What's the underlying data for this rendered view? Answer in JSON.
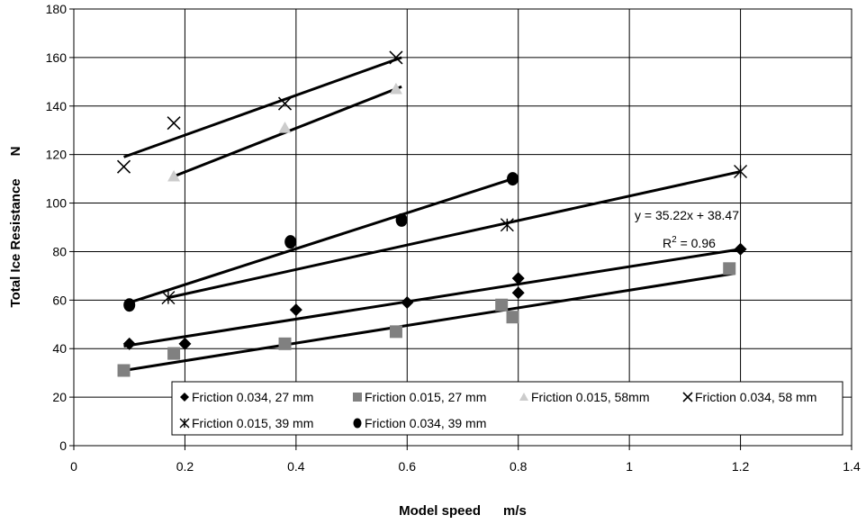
{
  "chart_data": {
    "type": "scatter",
    "xlabel": "Model speed      m/s",
    "ylabel": "Total Ice Resistance      N",
    "xlim": [
      0,
      1.4
    ],
    "ylim": [
      0,
      180
    ],
    "xticks": [
      0,
      0.2,
      0.4,
      0.6,
      0.8,
      1,
      1.2,
      1.4
    ],
    "yticks": [
      0,
      20,
      40,
      60,
      80,
      100,
      120,
      140,
      160,
      180
    ],
    "xtick_labels": [
      "0",
      "0.2",
      "0.4",
      "0.6",
      "0.8",
      "1",
      "1.2",
      "1.4"
    ],
    "ytick_labels": [
      "0",
      "20",
      "40",
      "60",
      "80",
      "100",
      "120",
      "140",
      "160",
      "180"
    ],
    "grid": true,
    "legend_position": "bottom",
    "series": [
      {
        "name": "Friction 0.034, 27 mm",
        "marker": "diamond",
        "color": "#000000",
        "x": [
          0.1,
          0.2,
          0.4,
          0.6,
          0.8,
          0.8,
          1.2
        ],
        "y": [
          42,
          42,
          56,
          59,
          69,
          63,
          81
        ],
        "trend": [
          [
            0.09,
            41
          ],
          [
            1.2,
            81
          ]
        ]
      },
      {
        "name": "Friction 0.015, 27 mm",
        "marker": "square",
        "color": "#808080",
        "x": [
          0.09,
          0.18,
          0.38,
          0.58,
          0.77,
          0.79,
          1.18
        ],
        "y": [
          31,
          38,
          42,
          47,
          58,
          53,
          73
        ],
        "trend": [
          [
            0.09,
            31
          ],
          [
            1.19,
            71
          ]
        ]
      },
      {
        "name": "Friction 0.015, 58mm",
        "marker": "triangle",
        "color": "#cccccc",
        "x": [
          0.18,
          0.38,
          0.58
        ],
        "y": [
          111,
          131,
          147
        ],
        "trend": [
          [
            0.18,
            111
          ],
          [
            0.59,
            148
          ]
        ]
      },
      {
        "name": "Friction 0.034, 58 mm",
        "marker": "x",
        "color": "#000000",
        "x": [
          0.09,
          0.18,
          0.38,
          0.58
        ],
        "y": [
          115,
          133,
          141,
          160
        ],
        "trend": [
          [
            0.09,
            119
          ],
          [
            0.59,
            160
          ]
        ]
      },
      {
        "name": "Friction 0.015, 39 mm",
        "marker": "star",
        "color": "#000000",
        "x": [
          0.17,
          0.78,
          1.2
        ],
        "y": [
          61,
          91,
          113
        ],
        "trend": [
          [
            0.17,
            61
          ],
          [
            1.2,
            113
          ]
        ]
      },
      {
        "name": "Friction 0.034, 39 mm",
        "marker": "circle",
        "color": "#000000",
        "x": [
          0.1,
          0.39,
          0.59,
          0.79
        ],
        "y": [
          58,
          84,
          93,
          110
        ],
        "trend": [
          [
            0.1,
            59
          ],
          [
            0.79,
            110
          ]
        ]
      }
    ],
    "annotations": {
      "equation": "y = 35.22x + 38.47",
      "r_label": "R",
      "r_superscript": "2",
      "r_value": " = 0.96"
    }
  }
}
